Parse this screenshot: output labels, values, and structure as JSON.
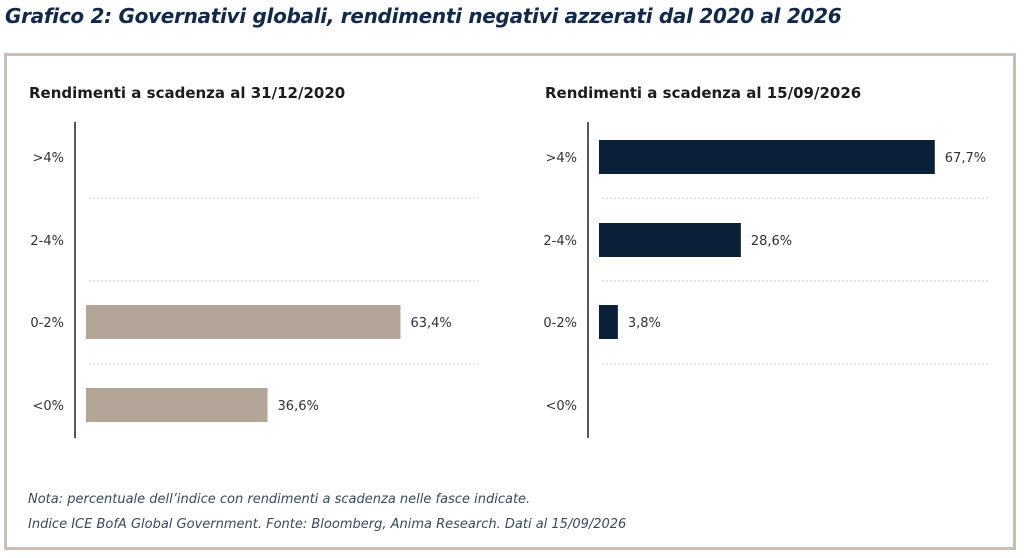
{
  "title": "Grafico 2: Governativi globali, rendimenti negativi azzerati dal 2020 al 2026",
  "notes": {
    "line1": "Nota: percentuale dell’indice con rendimenti a scadenza nelle fasce indicate.",
    "line2": "Indice ICE BofA Global Government. Fonte: Bloomberg, Anima Research. Dati al 15/09/2026"
  },
  "chart_data": [
    {
      "type": "bar",
      "orientation": "horizontal",
      "title": "Rendimenti a scadenza al 31/12/2020",
      "categories": [
        ">4%",
        "2-4%",
        "0-2%",
        "<0%"
      ],
      "values": [
        null,
        null,
        63.4,
        36.6
      ],
      "labels": [
        "",
        "",
        "63,4%",
        "36,6%"
      ],
      "color": "#b3a698",
      "xlim": [
        0,
        80
      ],
      "grid": true
    },
    {
      "type": "bar",
      "orientation": "horizontal",
      "title": "Rendimenti a scadenza al 15/09/2026",
      "categories": [
        ">4%",
        "2-4%",
        "0-2%",
        "<0%"
      ],
      "values": [
        67.7,
        28.6,
        3.8,
        null
      ],
      "labels": [
        "67,7%",
        "28,6%",
        "3,8%",
        ""
      ],
      "color": "#0a2038",
      "xlim": [
        0,
        80
      ],
      "grid": true
    }
  ]
}
